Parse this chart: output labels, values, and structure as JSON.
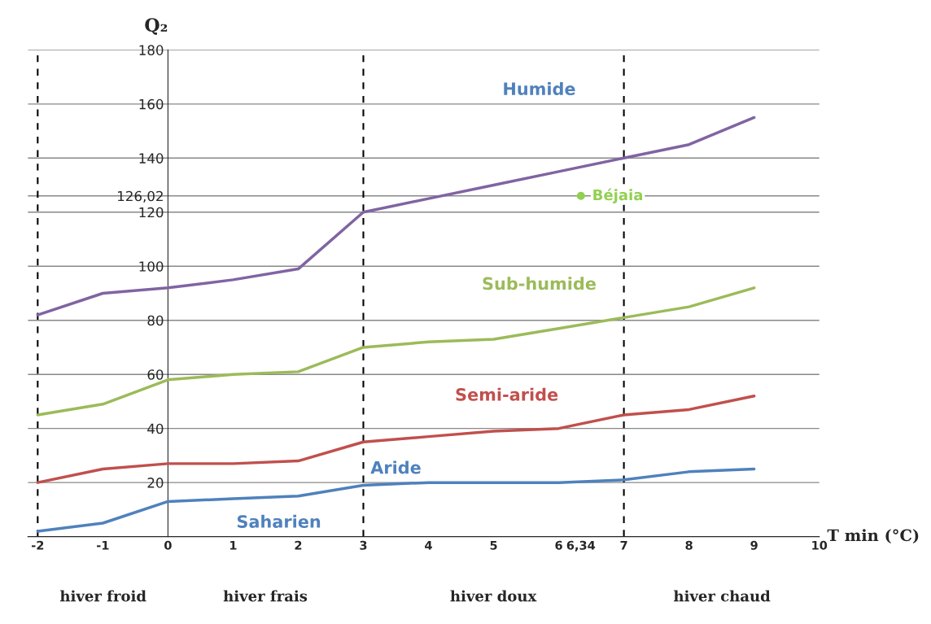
{
  "chart_data": {
    "type": "line",
    "xlabel": "T min (°C)",
    "ylabel": "Q₂",
    "x": [
      -2,
      -1,
      0,
      1,
      2,
      3,
      4,
      5,
      6,
      7,
      8,
      9
    ],
    "series": [
      {
        "color": "#4f81bd",
        "values": [
          2,
          5,
          13,
          14,
          15,
          19,
          20,
          20,
          20,
          21,
          24,
          25
        ]
      },
      {
        "color": "#c0504d",
        "values": [
          20,
          25,
          27,
          27,
          28,
          35,
          37,
          39,
          40,
          45,
          47,
          52
        ]
      },
      {
        "color": "#9bbb59",
        "values": [
          45,
          49,
          58,
          60,
          61,
          70,
          72,
          73,
          77,
          81,
          85,
          92
        ]
      },
      {
        "color": "#8064a2",
        "values": [
          82,
          90,
          92,
          95,
          99,
          120,
          125,
          130,
          135,
          140,
          145,
          155
        ]
      },
      {
        "type": "scatter",
        "name": "Béjaia",
        "color": "#92d050",
        "marker": "circle",
        "x": [
          6.34
        ],
        "values": [
          126.02
        ]
      }
    ],
    "xlim": [
      -2.15,
      10
    ],
    "ylim": [
      0,
      180
    ],
    "xticks": [
      -2,
      -1,
      0,
      1,
      2,
      3,
      4,
      5,
      6,
      {
        "value": 6.34,
        "label": "6,34"
      },
      7,
      8,
      9,
      10
    ],
    "yticks": [
      20,
      40,
      60,
      80,
      100,
      120,
      {
        "value": 126.02,
        "label": "126,02"
      },
      140,
      160,
      180
    ],
    "grid": "y",
    "legend": false,
    "marker": "none",
    "line_style": "solid",
    "ref_lines": [
      {
        "axis": "x",
        "value": -2,
        "color": "#000000",
        "line_style": "dashed"
      },
      {
        "axis": "x",
        "value": 3,
        "color": "#000000",
        "line_style": "dashed"
      },
      {
        "axis": "x",
        "value": 7,
        "color": "#000000",
        "line_style": "dashed"
      }
    ],
    "annotations": [
      "Saharien",
      "Aride",
      "Semi-aride",
      "Sub-humide",
      "Humide",
      "hiver froid",
      "hiver frais",
      "hiver doux",
      "hiver chaud"
    ]
  }
}
